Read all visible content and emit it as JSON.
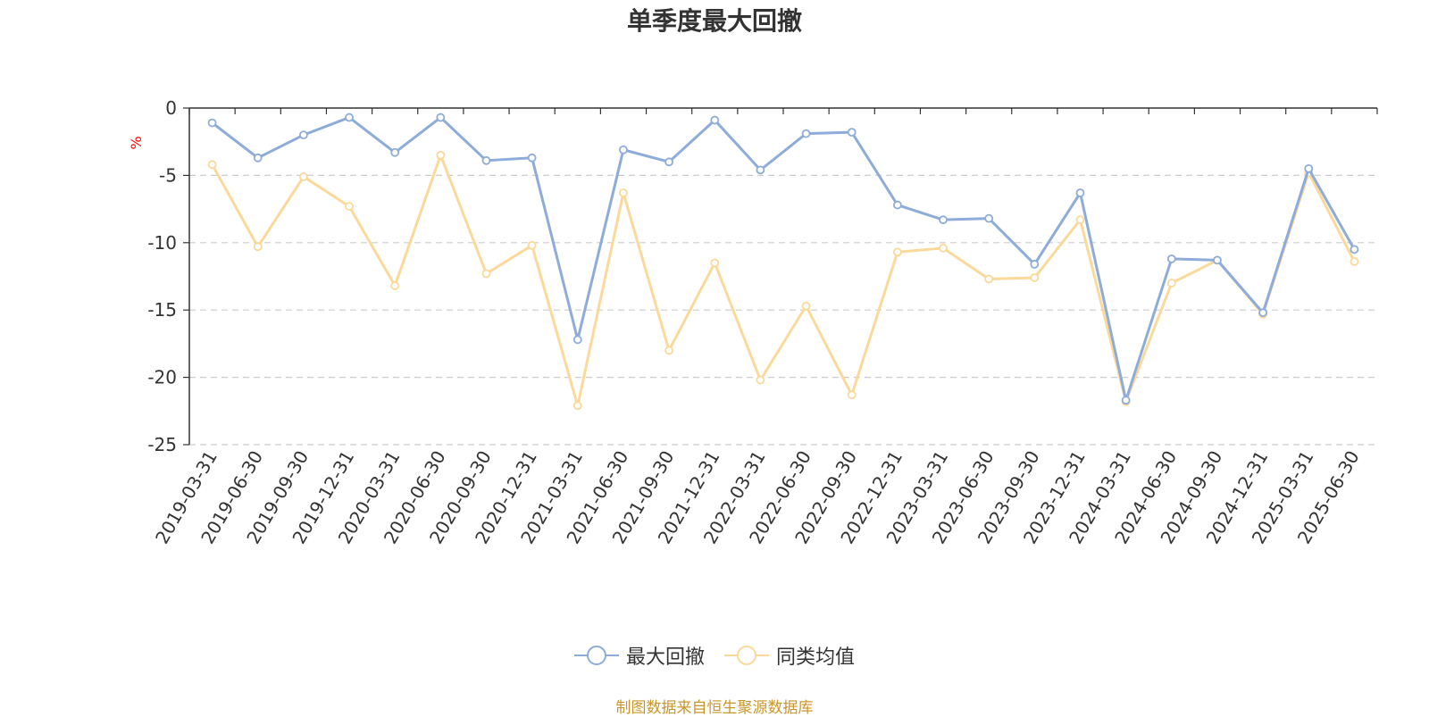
{
  "chart_data": {
    "type": "line",
    "title": "单季度最大回撤",
    "ylabel": "%",
    "xlabel": "",
    "ylim": [
      -25,
      0
    ],
    "yticks": [
      0,
      -5,
      -10,
      -15,
      -20,
      -25
    ],
    "grid": true,
    "legend_position": "bottom",
    "categories": [
      "2019-03-31",
      "2019-06-30",
      "2019-09-30",
      "2019-12-31",
      "2020-03-31",
      "2020-06-30",
      "2020-09-30",
      "2020-12-31",
      "2021-03-31",
      "2021-06-30",
      "2021-09-30",
      "2021-12-31",
      "2022-03-31",
      "2022-06-30",
      "2022-09-30",
      "2022-12-31",
      "2023-03-31",
      "2023-06-30",
      "2023-09-30",
      "2023-12-31",
      "2024-03-31",
      "2024-06-30",
      "2024-09-30",
      "2024-12-31",
      "2025-03-31",
      "2025-06-30"
    ],
    "series": [
      {
        "name": "最大回撤",
        "color": "#8eacd9",
        "values": [
          -1.1,
          -3.7,
          -2.0,
          -0.7,
          -3.3,
          -0.7,
          -3.9,
          -3.7,
          -17.2,
          -3.1,
          -4.0,
          -0.9,
          -4.6,
          -1.9,
          -1.8,
          -7.2,
          -8.3,
          -8.2,
          -11.6,
          -6.3,
          -21.7,
          -11.2,
          -11.3,
          -15.2,
          -4.5,
          -10.5
        ]
      },
      {
        "name": "同类均值",
        "color": "#fbd99a",
        "values": [
          -4.2,
          -10.3,
          -5.1,
          -7.3,
          -13.2,
          -3.5,
          -12.3,
          -10.2,
          -22.1,
          -6.3,
          -18.0,
          -11.5,
          -20.2,
          -14.7,
          -21.3,
          -10.7,
          -10.4,
          -12.7,
          -12.6,
          -8.3,
          -21.8,
          -13.0,
          -11.3,
          -15.3,
          -4.8,
          -11.4
        ]
      }
    ]
  },
  "legend": {
    "items": [
      "最大回撤",
      "同类均值"
    ]
  },
  "source_note": "制图数据来自恒生聚源数据库"
}
